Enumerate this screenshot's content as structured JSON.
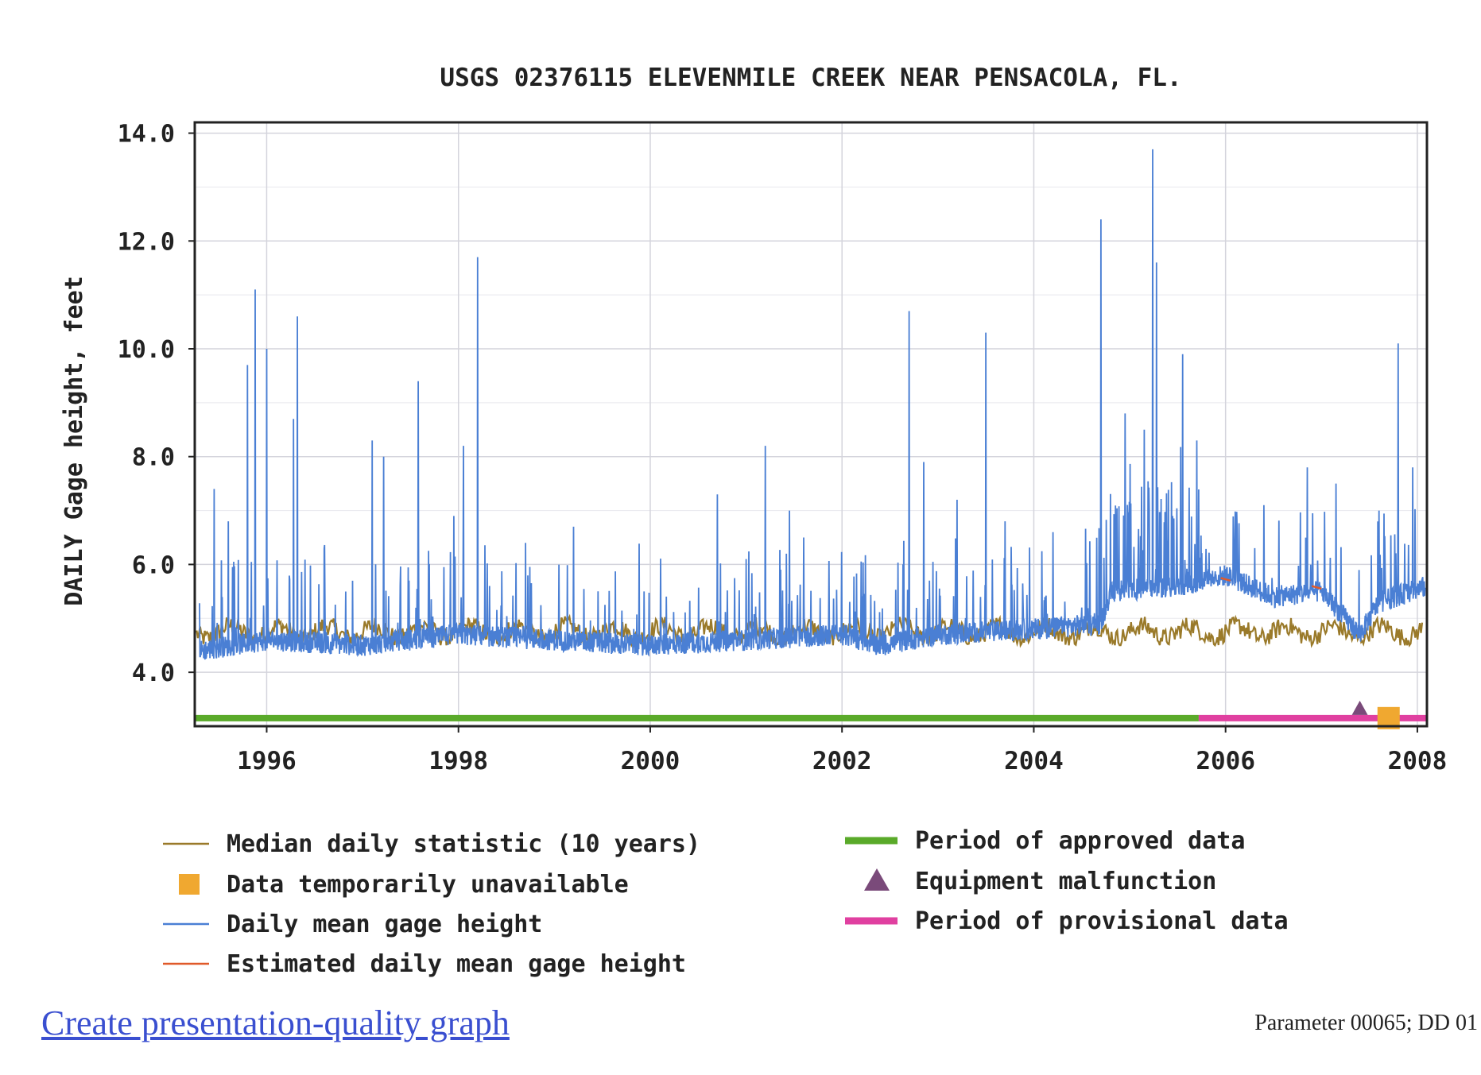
{
  "footer": {
    "link_text": "Create presentation-quality graph",
    "parameter_text": "Parameter 00065; DD 01"
  },
  "colors": {
    "median": "#9a7a2a",
    "daily_mean": "#4a7fd4",
    "estimated": "#e05a2a",
    "approved": "#5aaa2a",
    "provisional": "#e040a0",
    "unavailable": "#f0a830",
    "malfunction": "#7a4a7a",
    "grid": "#d4d4dc",
    "axis": "#222222"
  },
  "chart_data": {
    "type": "line",
    "title": "USGS 02376115 ELEVENMILE CREEK NEAR PENSACOLA, FL.",
    "ylabel": "DAILY Gage height, feet",
    "xlabel": "",
    "xlim": [
      1995.25,
      2008.1
    ],
    "ylim": [
      3.0,
      14.2
    ],
    "yticks": [
      "4.0",
      "6.0",
      "8.0",
      "10.0",
      "12.0",
      "14.0"
    ],
    "xticks": [
      "1996",
      "1998",
      "2000",
      "2002",
      "2004",
      "2006",
      "2008"
    ],
    "grid": true,
    "legend_position": "bottom",
    "legend": {
      "left": [
        {
          "label": "Median daily statistic (10 years)",
          "symbol": "line",
          "color": "#9a7a2a"
        },
        {
          "label": "Data temporarily unavailable",
          "symbol": "square",
          "color": "#f0a830"
        },
        {
          "label": "Daily mean gage height",
          "symbol": "line",
          "color": "#4a7fd4"
        },
        {
          "label": "Estimated daily mean gage height",
          "symbol": "line",
          "color": "#e05a2a"
        }
      ],
      "right": [
        {
          "label": "Period of approved data",
          "symbol": "thick-line",
          "color": "#5aaa2a"
        },
        {
          "label": "Equipment malfunction",
          "symbol": "triangle",
          "color": "#7a4a7a"
        },
        {
          "label": "Period of provisional data",
          "symbol": "thick-line",
          "color": "#e040a0"
        }
      ]
    },
    "series": [
      {
        "name": "Daily mean gage height",
        "baseline_segments": [
          {
            "x": 1995.3,
            "y": 4.4
          },
          {
            "x": 1996.0,
            "y": 4.6
          },
          {
            "x": 1997.0,
            "y": 4.5
          },
          {
            "x": 1998.0,
            "y": 4.7
          },
          {
            "x": 1999.0,
            "y": 4.6
          },
          {
            "x": 2000.0,
            "y": 4.5
          },
          {
            "x": 2001.0,
            "y": 4.6
          },
          {
            "x": 2002.0,
            "y": 4.7
          },
          {
            "x": 2002.4,
            "y": 4.5
          },
          {
            "x": 2003.0,
            "y": 4.7
          },
          {
            "x": 2004.0,
            "y": 4.8
          },
          {
            "x": 2004.7,
            "y": 4.9
          },
          {
            "x": 2004.8,
            "y": 5.5
          },
          {
            "x": 2005.5,
            "y": 5.6
          },
          {
            "x": 2006.0,
            "y": 5.8
          },
          {
            "x": 2006.5,
            "y": 5.4
          },
          {
            "x": 2007.0,
            "y": 5.5
          },
          {
            "x": 2007.4,
            "y": 4.7
          },
          {
            "x": 2007.6,
            "y": 5.3
          },
          {
            "x": 2008.1,
            "y": 5.6
          }
        ],
        "peaks": [
          {
            "x": 1995.45,
            "y": 7.4
          },
          {
            "x": 1995.6,
            "y": 6.8
          },
          {
            "x": 1995.8,
            "y": 9.7
          },
          {
            "x": 1995.88,
            "y": 11.1
          },
          {
            "x": 1996.0,
            "y": 10.0
          },
          {
            "x": 1996.28,
            "y": 8.7
          },
          {
            "x": 1996.32,
            "y": 10.6
          },
          {
            "x": 1996.6,
            "y": 6.3
          },
          {
            "x": 1997.1,
            "y": 8.3
          },
          {
            "x": 1997.22,
            "y": 8.0
          },
          {
            "x": 1997.58,
            "y": 9.4
          },
          {
            "x": 1997.95,
            "y": 6.9
          },
          {
            "x": 1998.05,
            "y": 8.2
          },
          {
            "x": 1998.2,
            "y": 11.7
          },
          {
            "x": 1998.7,
            "y": 6.4
          },
          {
            "x": 1999.2,
            "y": 6.7
          },
          {
            "x": 2000.7,
            "y": 7.3
          },
          {
            "x": 2001.0,
            "y": 6.1
          },
          {
            "x": 2001.2,
            "y": 8.2
          },
          {
            "x": 2001.45,
            "y": 7.0
          },
          {
            "x": 2001.6,
            "y": 6.5
          },
          {
            "x": 2002.7,
            "y": 10.7
          },
          {
            "x": 2002.85,
            "y": 7.9
          },
          {
            "x": 2003.2,
            "y": 7.2
          },
          {
            "x": 2003.5,
            "y": 10.3
          },
          {
            "x": 2003.7,
            "y": 6.8
          },
          {
            "x": 2004.2,
            "y": 6.6
          },
          {
            "x": 2004.7,
            "y": 12.4
          },
          {
            "x": 2004.95,
            "y": 8.8
          },
          {
            "x": 2005.15,
            "y": 8.5
          },
          {
            "x": 2005.24,
            "y": 13.7
          },
          {
            "x": 2005.28,
            "y": 11.6
          },
          {
            "x": 2005.55,
            "y": 9.9
          },
          {
            "x": 2005.7,
            "y": 8.3
          },
          {
            "x": 2006.4,
            "y": 7.1
          },
          {
            "x": 2006.85,
            "y": 7.8
          },
          {
            "x": 2007.15,
            "y": 7.5
          },
          {
            "x": 2007.6,
            "y": 7.0
          },
          {
            "x": 2007.8,
            "y": 10.1
          },
          {
            "x": 2007.95,
            "y": 7.8
          }
        ]
      },
      {
        "name": "Median daily statistic (10 years)",
        "mean": 4.75,
        "range": [
          4.5,
          5.2
        ]
      }
    ],
    "status_periods": [
      {
        "label": "Period of approved data",
        "x_start": 1995.25,
        "x_end": 2005.72,
        "y": 3.15
      },
      {
        "label": "Period of provisional data",
        "x_start": 2005.72,
        "x_end": 2008.1,
        "y": 3.15
      }
    ],
    "markers": [
      {
        "label": "Equipment malfunction",
        "x": 2007.4,
        "y": 3.15
      },
      {
        "label": "Data temporarily unavailable",
        "x": 2007.7,
        "y": 3.15
      }
    ]
  }
}
